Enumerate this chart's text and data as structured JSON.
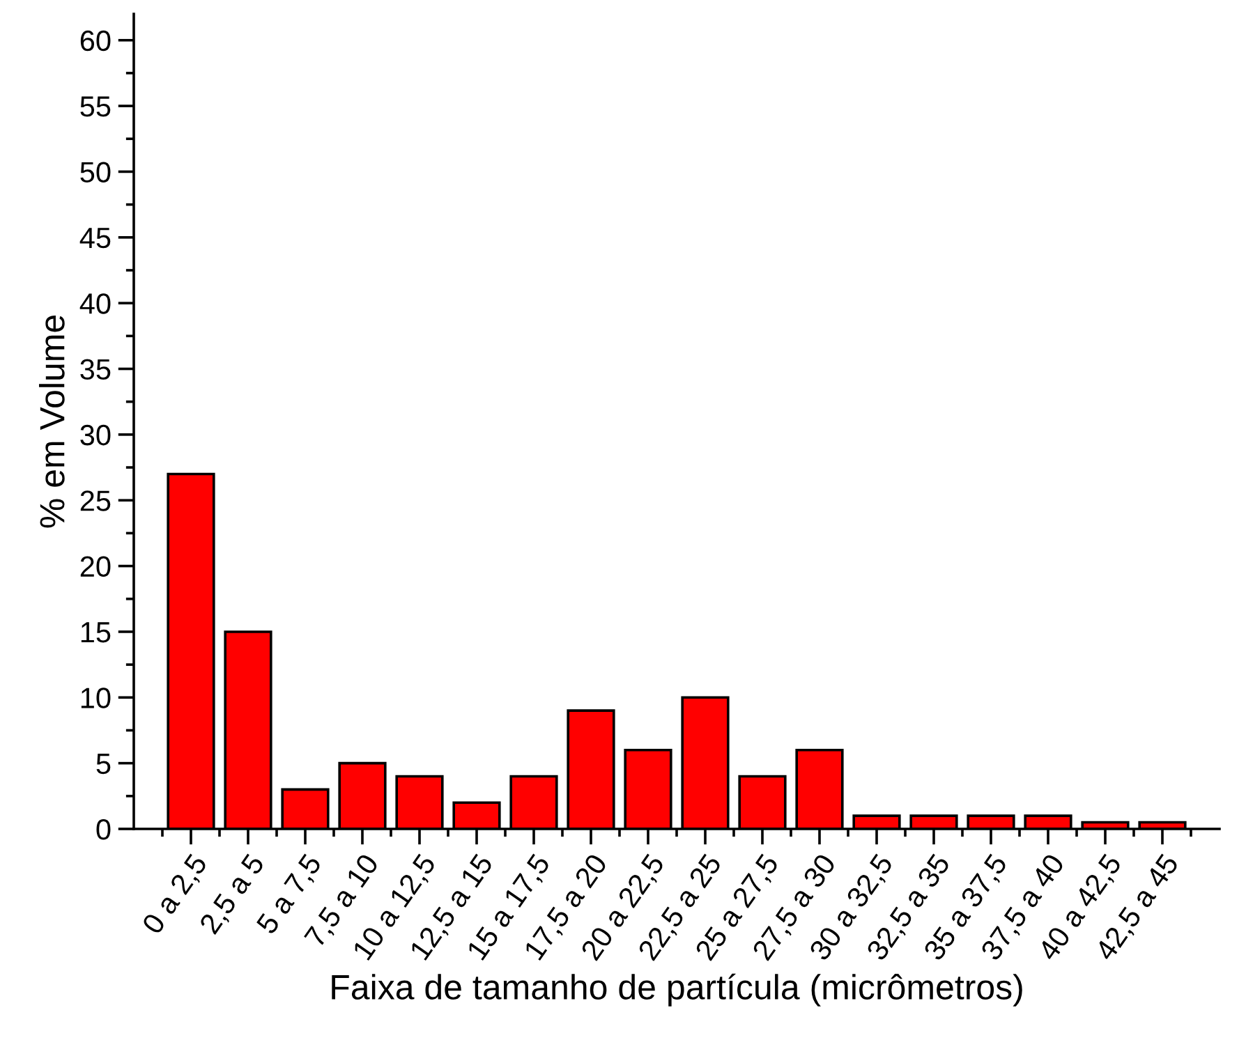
{
  "chart_data": {
    "type": "bar",
    "xlabel": "Faixa de tamanho de partícula (micrômetros)",
    "ylabel": "% em Volume",
    "categories": [
      "0 a 2,5",
      "2,5 a 5",
      "5 a 7,5",
      "7,5 a 10",
      "10 a 12,5",
      "12,5 a 15",
      "15 a 17,5",
      "17,5 a 20",
      "20 a 22,5",
      "22,5 a 25",
      "25 a 27,5",
      "27,5 a 30",
      "30 a 32,5",
      "32,5 a 35",
      "35 a 37,5",
      "37,5 a 40",
      "40 a 42,5",
      "42,5 a 45"
    ],
    "values": [
      27,
      15,
      3,
      5,
      4,
      2,
      4,
      9,
      6,
      10,
      4,
      6,
      1,
      1,
      1,
      1,
      0.5,
      0.5
    ],
    "color": "#ff0000",
    "ylim": [
      0,
      62
    ],
    "yticks": [
      0,
      5,
      10,
      15,
      20,
      25,
      30,
      35,
      40,
      45,
      50,
      55,
      60
    ],
    "grid": false,
    "legend": false
  }
}
